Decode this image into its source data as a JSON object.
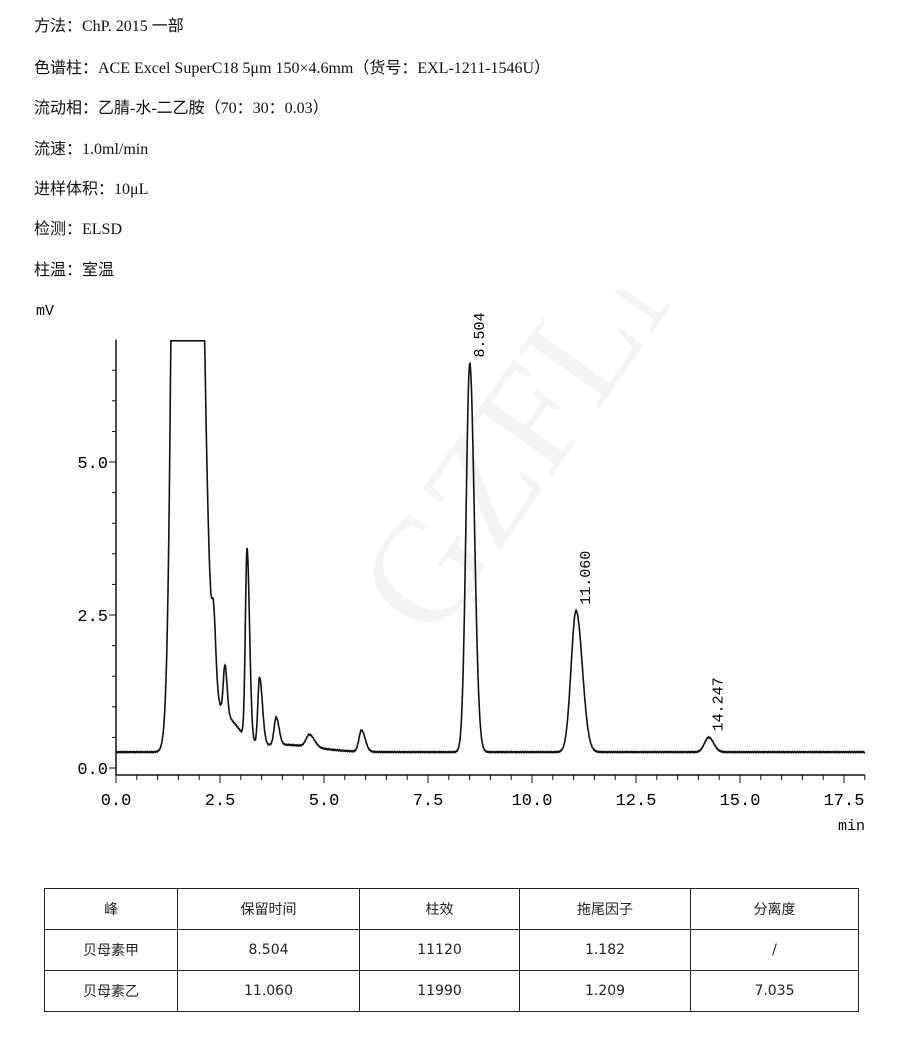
{
  "conditions": [
    "方法：ChP. 2015  一部",
    "色谱柱：ACE Excel SuperC18 5μm 150×4.6mm（货号：EXL-1211-1546U）",
    "流动相：乙腈-水-二乙胺（70：30：0.03）",
    "流速：1.0ml/min",
    "进样体积：10μL",
    "检测：ELSD",
    "柱温：室温"
  ],
  "watermark": "GZFLM",
  "chart_data": {
    "type": "line",
    "xlabel": "min",
    "ylabel": "mV",
    "xlim": [
      0,
      18
    ],
    "ylim": [
      0,
      7
    ],
    "xticks": [
      "0.0",
      "2.5",
      "5.0",
      "7.5",
      "10.0",
      "12.5",
      "15.0",
      "17.5"
    ],
    "yticks": [
      "0.0",
      "2.5",
      "5.0"
    ],
    "grid": false,
    "baseline_mV": 0.26,
    "peaks": [
      {
        "rt": 1.6,
        "height": 40,
        "note_offscale": true
      },
      {
        "rt": 2.35,
        "height": 0.9
      },
      {
        "rt": 2.6,
        "height": 0.55
      },
      {
        "rt": 2.62,
        "height": 0.8
      },
      {
        "rt": 3.15,
        "height": 3.1
      },
      {
        "rt": 3.45,
        "height": 1.1
      },
      {
        "rt": 3.85,
        "height": 0.45
      },
      {
        "rt": 4.0,
        "height": 0.12
      },
      {
        "rt": 4.65,
        "height": 0.2
      },
      {
        "rt": 5.9,
        "height": 0.35
      },
      {
        "rt": 8.504,
        "height": 6.35,
        "label": "8.504"
      },
      {
        "rt": 11.06,
        "height": 2.31,
        "label": "11.060"
      },
      {
        "rt": 14.247,
        "height": 0.24,
        "label": "14.247"
      }
    ],
    "peak_widths_min": [
      [
        0.15,
        0.28
      ],
      [
        0.04,
        0.05
      ],
      [
        0.3,
        0.35
      ],
      [
        0.04,
        0.05
      ],
      [
        0.04,
        0.06
      ],
      [
        0.04,
        0.07
      ],
      [
        0.05,
        0.07
      ],
      [
        0.8,
        0.8
      ],
      [
        0.08,
        0.12
      ],
      [
        0.06,
        0.09
      ],
      [
        0.09,
        0.11
      ],
      [
        0.12,
        0.15
      ],
      [
        0.1,
        0.12
      ]
    ],
    "line_color": "#111111"
  },
  "table": {
    "headers": [
      "峰",
      "保留时间",
      "柱效",
      "拖尾因子",
      "分离度"
    ],
    "rows": [
      [
        "贝母素甲",
        "8.504",
        "11120",
        "1.182",
        "/"
      ],
      [
        "贝母素乙",
        "11.060",
        "11990",
        "1.209",
        "7.035"
      ]
    ]
  }
}
